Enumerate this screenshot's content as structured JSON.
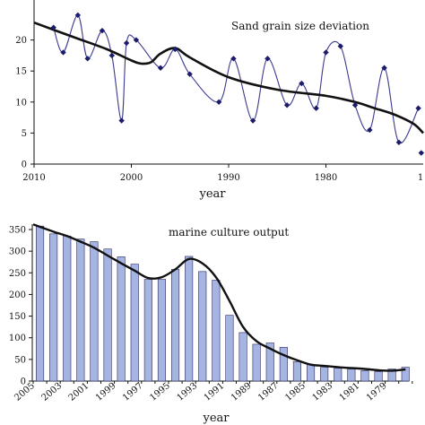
{
  "colors": {
    "spline": "#3a3a8f",
    "marker": "#1c1c6b",
    "trend": "#111111",
    "bar_fill": "#a6b4e2",
    "bar_stroke": "#2b2b5e",
    "axis": "#111111"
  },
  "chart_data": [
    {
      "type": "line",
      "title": "Sand grain size deviation",
      "xlabel": "year",
      "ylabel": "",
      "xlim": [
        2010,
        1970
      ],
      "ylim": [
        0,
        25
      ],
      "x_ticks": [
        2010,
        2000,
        1990,
        1980
      ],
      "x_tick_labels": [
        "2010",
        "2000",
        "1990",
        "1980"
      ],
      "right_end_label": "1",
      "y_ticks": [
        0,
        5,
        10,
        15,
        20
      ],
      "grid": false,
      "series": [
        {
          "style": "smooth-line-with-diamond-markers",
          "x": [
            2008,
            2007,
            2005.5,
            2004.5,
            2003,
            2002,
            2001,
            2000.5,
            1999.5,
            1997,
            1995.5,
            1994,
            1991,
            1989.5,
            1987.5,
            1986,
            1984,
            1982.5,
            1981,
            1980,
            1978.5,
            1977,
            1975.5,
            1974,
            1972.5,
            1970.5
          ],
          "y": [
            22,
            18,
            24,
            17,
            21.5,
            17.5,
            7,
            19.5,
            20,
            15.5,
            18.5,
            14.5,
            10,
            17,
            7,
            17,
            9.5,
            13,
            9,
            18,
            19,
            9.5,
            5.5,
            15.5,
            3.5,
            9
          ]
        },
        {
          "style": "trend",
          "x": [
            2010,
            2006,
            2002.5,
            2000,
            1999,
            1998,
            1997,
            1995.5,
            1994,
            1990,
            1985,
            1980,
            1977,
            1975,
            1973,
            1971,
            1970
          ],
          "y": [
            22.8,
            20.5,
            18.5,
            16.7,
            16.2,
            16.4,
            17.8,
            18.7,
            17.2,
            14,
            12,
            11,
            10,
            9,
            8,
            6.5,
            5
          ]
        }
      ],
      "extra_marker": {
        "x": 1970.2,
        "y": 1.8
      }
    },
    {
      "type": "bar",
      "title": "marine culture output",
      "xlabel": "year",
      "ylabel": "",
      "ylim": [
        0,
        350
      ],
      "y_ticks": [
        0,
        50,
        100,
        150,
        200,
        250,
        300,
        350
      ],
      "tick_labels": [
        "2005",
        "2003",
        "2001",
        "1999",
        "1997",
        "1995",
        "1993",
        "1991",
        "1989",
        "1987",
        "1985",
        "1983",
        "1981",
        "1979"
      ],
      "categories": [
        "2005",
        "2004",
        "2003",
        "2002",
        "2001",
        "2000",
        "1999",
        "1998",
        "1997",
        "1996",
        "1995",
        "1994",
        "1993",
        "1992",
        "1991",
        "1990",
        "1989",
        "1988",
        "1987",
        "1986",
        "1985",
        "1984",
        "1983",
        "1982",
        "1981",
        "1980",
        "1979",
        "1978"
      ],
      "values": [
        358,
        340,
        335,
        328,
        322,
        305,
        287,
        270,
        235,
        235,
        258,
        288,
        253,
        233,
        152,
        112,
        85,
        88,
        78,
        45,
        38,
        32,
        30,
        28,
        24,
        22,
        28,
        32
      ],
      "trend": [
        362,
        345,
        335,
        322,
        308,
        290,
        272,
        255,
        238,
        240,
        258,
        282,
        272,
        240,
        185,
        125,
        92,
        75,
        60,
        48,
        38,
        35,
        32,
        30,
        28,
        25,
        24,
        27
      ]
    }
  ]
}
